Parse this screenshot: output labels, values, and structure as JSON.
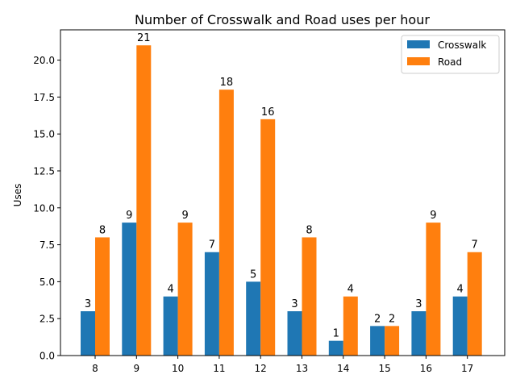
{
  "chart_data": {
    "type": "bar",
    "title": "Number of Crosswalk and Road uses per hour",
    "xlabel": "",
    "ylabel": "Uses",
    "categories": [
      "8",
      "9",
      "10",
      "11",
      "12",
      "13",
      "14",
      "15",
      "16",
      "17"
    ],
    "series": [
      {
        "name": "Crosswalk",
        "color": "#1f77b4",
        "values": [
          3,
          9,
          4,
          7,
          5,
          3,
          1,
          2,
          3,
          4
        ]
      },
      {
        "name": "Road",
        "color": "#ff7f0e",
        "values": [
          8,
          21,
          9,
          18,
          16,
          8,
          4,
          2,
          9,
          7
        ]
      }
    ],
    "ylim": [
      0,
      22.05
    ],
    "yticks": [
      "0.0",
      "2.5",
      "5.0",
      "7.5",
      "10.0",
      "12.5",
      "15.0",
      "17.5",
      "20.0"
    ],
    "grid": false,
    "legend": "top-right",
    "data_labels": true
  }
}
